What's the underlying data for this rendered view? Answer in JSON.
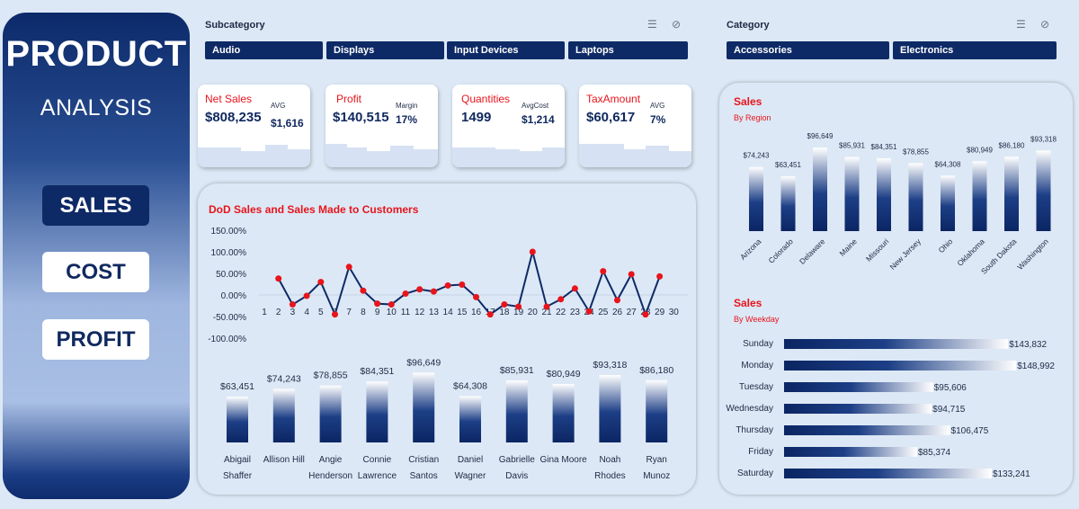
{
  "sidebar": {
    "title": "PRODUCT",
    "subtitle": "ANALYSIS",
    "nav": {
      "sales": "SALES",
      "cost": "COST",
      "profit": "PROFIT"
    }
  },
  "slicers": {
    "subcategory": {
      "title": "Subcategory",
      "items": [
        "Audio",
        "Displays",
        "Input Devices",
        "Laptops"
      ]
    },
    "category": {
      "title": "Category",
      "items": [
        "Accessories",
        "Electronics"
      ]
    }
  },
  "kpis": [
    {
      "label": "Net Sales",
      "value": "$808,235",
      "sublabel": "AVG",
      "subvalue": "$1,616"
    },
    {
      "label": "Profit",
      "value": "$140,515",
      "sublabel": "Margin",
      "subvalue": "17%"
    },
    {
      "label": "Quantities",
      "value": "1499",
      "sublabel": "AvgCost",
      "subvalue": "$1,214"
    },
    {
      "label": "TaxAmount",
      "value": "$60,617",
      "sublabel": "AVG",
      "subvalue": "7%"
    }
  ],
  "colors": {
    "navy": "#0e2a66",
    "red": "#e8141c",
    "bg": "#dce8f5"
  },
  "chart_data": [
    {
      "id": "dod",
      "type": "line",
      "title": "DoD Sales and Sales Made to Customers",
      "x": [
        1,
        2,
        3,
        4,
        5,
        6,
        7,
        8,
        9,
        10,
        11,
        12,
        13,
        14,
        15,
        16,
        17,
        18,
        19,
        20,
        21,
        22,
        23,
        24,
        25,
        26,
        27,
        28,
        29,
        30
      ],
      "values": [
        null,
        38,
        -22,
        -2,
        30,
        -45,
        65,
        10,
        -20,
        -22,
        3,
        13,
        8,
        22,
        24,
        -5,
        -45,
        -22,
        -27,
        100,
        -27,
        -10,
        15,
        -38,
        55,
        -12,
        48,
        -45,
        43,
        null
      ],
      "yticks": [
        "150.00%",
        "100.00%",
        "50.00%",
        "0.00%",
        "-50.00%",
        "-100.00%"
      ],
      "ylim": [
        -100,
        150
      ]
    },
    {
      "id": "customers",
      "type": "bar",
      "categories": [
        [
          "Abigail",
          "Shaffer"
        ],
        [
          "Allison Hill"
        ],
        [
          "Angie",
          "Henderson"
        ],
        [
          "Connie",
          "Lawrence"
        ],
        [
          "Cristian",
          "Santos"
        ],
        [
          "Daniel",
          "Wagner"
        ],
        [
          "Gabrielle",
          "Davis"
        ],
        [
          "Gina Moore"
        ],
        [
          "Noah",
          "Rhodes"
        ],
        [
          "Ryan",
          "Munoz"
        ]
      ],
      "values": [
        63451,
        74243,
        78855,
        84351,
        96649,
        64308,
        85931,
        80949,
        93318,
        86180
      ],
      "labels": [
        "$63,451",
        "$74,243",
        "$78,855",
        "$84,351",
        "$96,649",
        "$64,308",
        "$85,931",
        "$80,949",
        "$93,318",
        "$86,180"
      ]
    },
    {
      "id": "region",
      "type": "bar",
      "title": "Sales",
      "subtitle": "By Region",
      "categories": [
        "Arizona",
        "Colorado",
        "Delaware",
        "Maine",
        "Missouri",
        "New Jersey",
        "Ohio",
        "Oklahoma",
        "South Dakota",
        "Washington"
      ],
      "values": [
        74243,
        63451,
        96649,
        85931,
        84351,
        78855,
        64308,
        80949,
        86180,
        93318
      ],
      "labels": [
        "$74,243",
        "$63,451",
        "$96,649",
        "$85,931",
        "$84,351",
        "$78,855",
        "$64,308",
        "$80,949",
        "$86,180",
        "$93,318"
      ]
    },
    {
      "id": "weekday",
      "type": "bar",
      "orientation": "horizontal",
      "title": "Sales",
      "subtitle": "By Weekday",
      "categories": [
        "Sunday",
        "Monday",
        "Tuesday",
        "Wednesday",
        "Thursday",
        "Friday",
        "Saturday"
      ],
      "values": [
        143832,
        148992,
        95606,
        94715,
        106475,
        85374,
        133241
      ],
      "labels": [
        "$143,832",
        "$148,992",
        "$95,606",
        "$94,715",
        "$106,475",
        "$85,374",
        "$133,241"
      ]
    }
  ]
}
